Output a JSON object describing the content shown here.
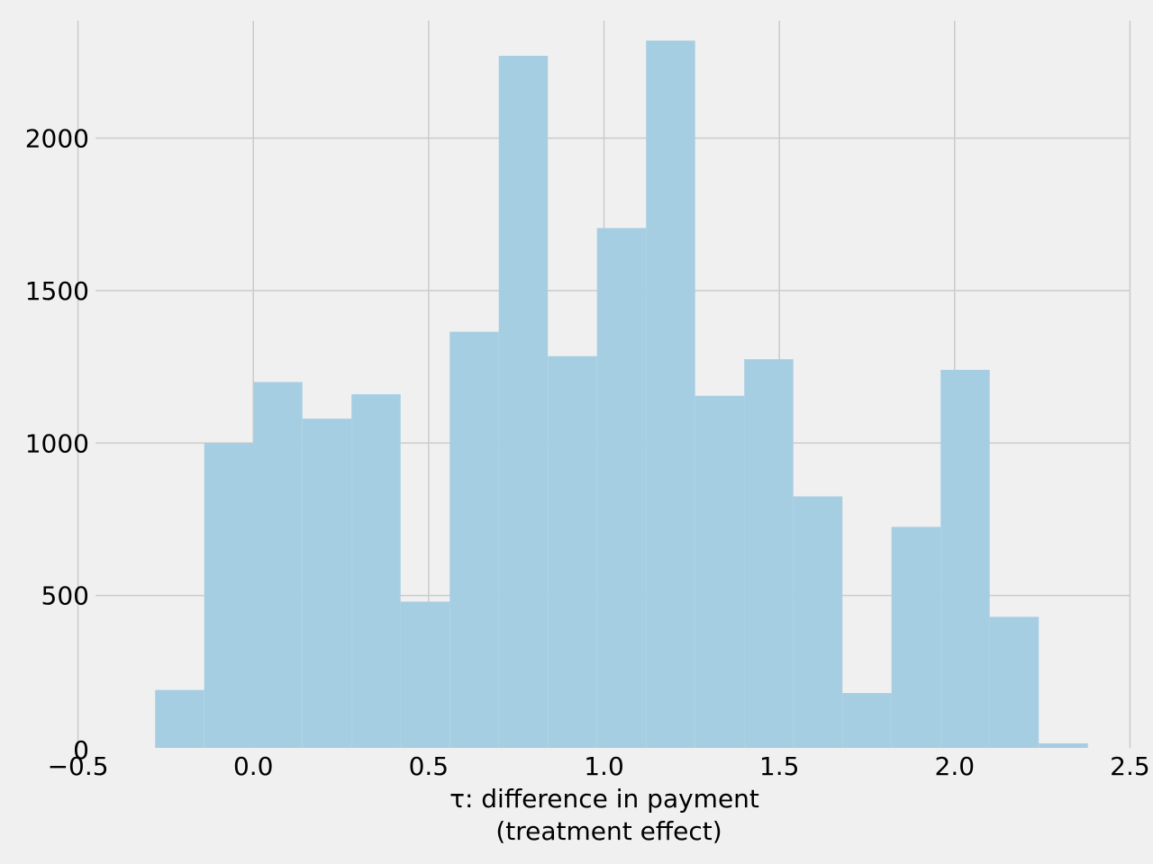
{
  "chart_data": {
    "type": "bar",
    "subtype": "histogram",
    "title": "",
    "xlabel_lines": [
      "τ: difference in payment",
      "(treatment effect)"
    ],
    "ylabel": "",
    "xlim": [
      -0.54,
      2.54
    ],
    "ylim": [
      0,
      2400
    ],
    "xticks": [
      -0.5,
      0.0,
      0.5,
      1.0,
      1.5,
      2.0,
      2.5
    ],
    "xtick_labels": [
      "−0.5",
      "0.0",
      "0.5",
      "1.0",
      "1.5",
      "2.0",
      "2.5"
    ],
    "yticks": [
      0,
      500,
      1000,
      1500,
      2000
    ],
    "ytick_labels": [
      "0",
      "500",
      "1000",
      "1500",
      "2000"
    ],
    "grid": true,
    "bar_color": "#a6cee3",
    "background_color": "#f0f0f0",
    "grid_color": "#cbcbcb",
    "bins": [
      {
        "x0": -0.28,
        "x1": -0.14,
        "count": 190
      },
      {
        "x0": -0.14,
        "x1": 0.0,
        "count": 1000
      },
      {
        "x0": 0.0,
        "x1": 0.14,
        "count": 1200
      },
      {
        "x0": 0.14,
        "x1": 0.28,
        "count": 1080
      },
      {
        "x0": 0.28,
        "x1": 0.42,
        "count": 1160
      },
      {
        "x0": 0.42,
        "x1": 0.56,
        "count": 480
      },
      {
        "x0": 0.56,
        "x1": 0.7,
        "count": 1365
      },
      {
        "x0": 0.7,
        "x1": 0.84,
        "count": 2270
      },
      {
        "x0": 0.84,
        "x1": 0.98,
        "count": 1285
      },
      {
        "x0": 0.98,
        "x1": 1.12,
        "count": 1705
      },
      {
        "x0": 1.12,
        "x1": 1.26,
        "count": 2320
      },
      {
        "x0": 1.26,
        "x1": 1.4,
        "count": 1155
      },
      {
        "x0": 1.4,
        "x1": 1.54,
        "count": 1275
      },
      {
        "x0": 1.54,
        "x1": 1.68,
        "count": 825
      },
      {
        "x0": 1.68,
        "x1": 1.82,
        "count": 180
      },
      {
        "x0": 1.82,
        "x1": 1.96,
        "count": 725
      },
      {
        "x0": 1.96,
        "x1": 2.1,
        "count": 1240
      },
      {
        "x0": 2.1,
        "x1": 2.24,
        "count": 430
      },
      {
        "x0": 2.24,
        "x1": 2.38,
        "count": 15
      }
    ]
  }
}
